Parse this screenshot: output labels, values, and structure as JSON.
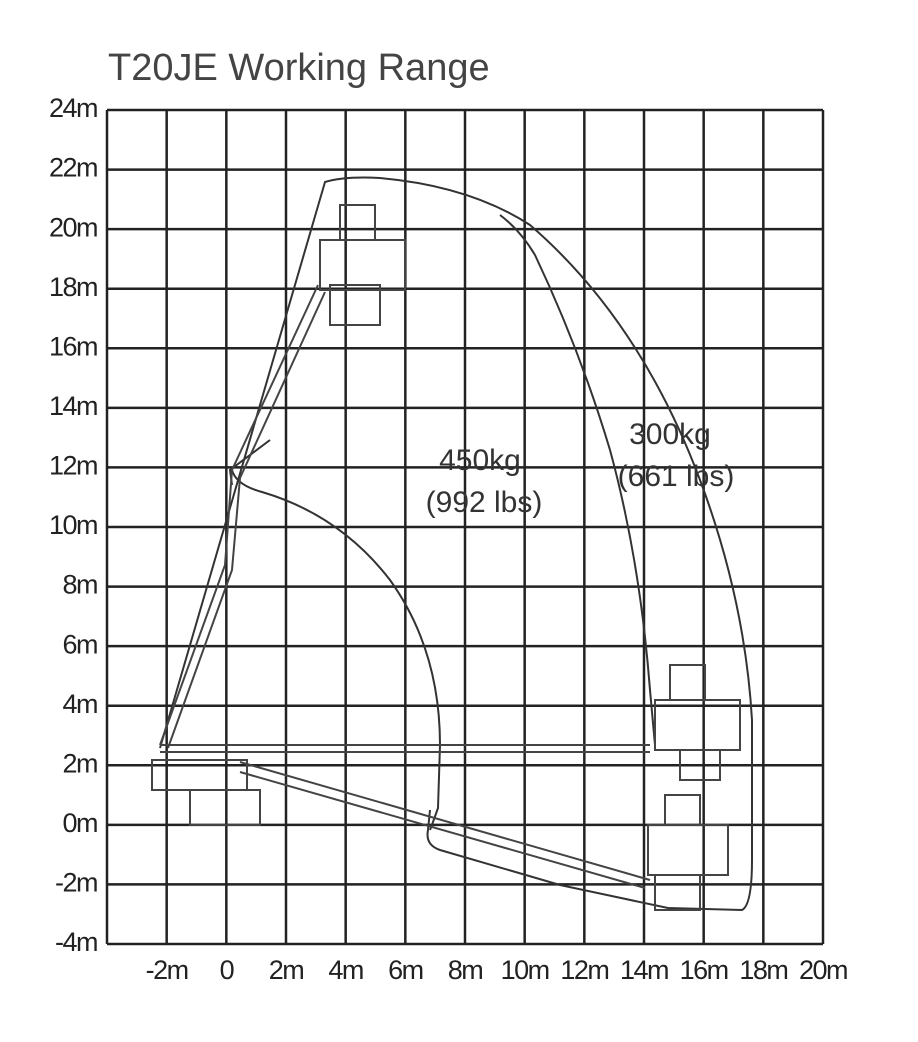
{
  "title": "T20JE Working Range",
  "y_axis_labels": [
    "24m",
    "22m",
    "20m",
    "18m",
    "16m",
    "14m",
    "12m",
    "10m",
    "8m",
    "6m",
    "4m",
    "2m",
    "0m",
    "-2m",
    "-4m"
  ],
  "x_axis_labels": [
    "-2m",
    "0",
    "2m",
    "4m",
    "6m",
    "8m",
    "10m",
    "12m",
    "14m",
    "16m",
    "18m",
    "20m"
  ],
  "zones": [
    {
      "lines": [
        "450kg",
        "(992 lbs)"
      ]
    },
    {
      "lines": [
        "300kg",
        "(661 lbs)"
      ]
    }
  ]
}
